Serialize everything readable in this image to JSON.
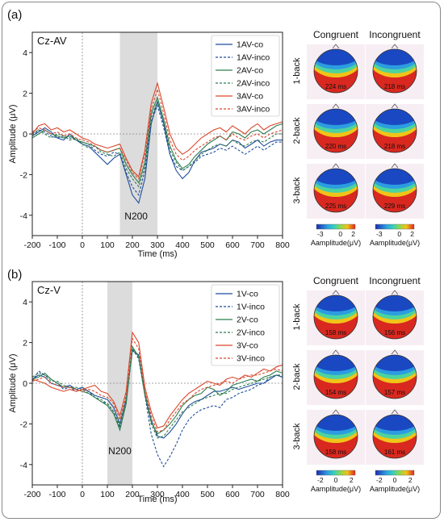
{
  "chart_data": [
    {
      "type": "line",
      "panel_label": "(a)",
      "title": "Cz-AV",
      "xlabel": "Time (ms)",
      "ylabel": "Amplitude (μV)",
      "xlim": [
        -200,
        800
      ],
      "ylim": [
        -5,
        5
      ],
      "xticks": [
        -200,
        -100,
        0,
        100,
        200,
        300,
        400,
        500,
        600,
        700,
        800
      ],
      "yticks": [
        -4,
        -2,
        0,
        2,
        4
      ],
      "shaded_window": [
        150,
        300
      ],
      "annotation": {
        "text": "N200",
        "x": 215,
        "y": -4.0
      },
      "legend_position": "top-right",
      "x": [
        -200,
        -175,
        -150,
        -125,
        -100,
        -75,
        -50,
        -25,
        0,
        25,
        50,
        75,
        100,
        125,
        150,
        175,
        200,
        225,
        250,
        275,
        300,
        325,
        350,
        375,
        400,
        425,
        450,
        475,
        500,
        525,
        550,
        575,
        600,
        625,
        650,
        675,
        700,
        725,
        750,
        775,
        800
      ],
      "series": [
        {
          "name": "1AV-co",
          "color": "#1f4e9a",
          "dash": false,
          "values": [
            -0.1,
            0.1,
            0.3,
            0.1,
            -0.2,
            -0.3,
            0.0,
            -0.3,
            -0.5,
            -0.6,
            -0.9,
            -1.2,
            -1.5,
            -1.2,
            -1.0,
            -2.0,
            -3.0,
            -3.4,
            -2.2,
            0.5,
            1.6,
            0.5,
            -1.0,
            -1.8,
            -2.2,
            -1.9,
            -1.3,
            -0.9,
            -0.8,
            -0.7,
            -0.5,
            -0.6,
            -0.3,
            -0.4,
            -0.7,
            -0.5,
            -0.3,
            -0.6,
            -0.4,
            -0.3,
            -0.3
          ]
        },
        {
          "name": "1AV-inco",
          "color": "#1f4e9a",
          "dash": true,
          "values": [
            0.0,
            0.2,
            0.1,
            -0.1,
            -0.2,
            -0.1,
            -0.2,
            -0.3,
            -0.4,
            -0.5,
            -0.8,
            -1.0,
            -1.1,
            -0.9,
            -1.0,
            -1.9,
            -2.6,
            -3.0,
            -1.8,
            0.6,
            1.4,
            0.3,
            -1.0,
            -1.6,
            -1.8,
            -1.6,
            -1.4,
            -1.1,
            -1.0,
            -0.9,
            -0.7,
            -0.8,
            -0.6,
            -0.8,
            -1.0,
            -0.8,
            -0.6,
            -0.8,
            -0.6,
            -0.4,
            -0.4
          ]
        },
        {
          "name": "2AV-co",
          "color": "#2e7d4f",
          "dash": false,
          "values": [
            -0.2,
            0.0,
            0.2,
            0.0,
            -0.1,
            -0.2,
            -0.1,
            -0.3,
            -0.4,
            -0.5,
            -0.6,
            -0.8,
            -0.9,
            -0.8,
            -0.7,
            -1.5,
            -2.0,
            -2.4,
            -1.4,
            1.0,
            1.8,
            0.7,
            -0.6,
            -1.3,
            -1.7,
            -1.5,
            -1.1,
            -0.8,
            -0.5,
            -0.3,
            -0.1,
            -0.3,
            0.1,
            0.0,
            -0.2,
            0.1,
            0.2,
            0.0,
            0.2,
            0.4,
            0.5
          ]
        },
        {
          "name": "2AV-inco",
          "color": "#2e7d4f",
          "dash": true,
          "values": [
            -0.1,
            0.2,
            0.0,
            -0.2,
            0.0,
            -0.1,
            -0.3,
            -0.2,
            -0.5,
            -0.7,
            -0.6,
            -0.9,
            -1.0,
            -1.1,
            -0.9,
            -1.7,
            -2.2,
            -2.6,
            -1.6,
            0.8,
            1.6,
            0.6,
            -0.8,
            -1.4,
            -1.8,
            -1.6,
            -1.3,
            -1.0,
            -0.8,
            -0.6,
            -0.5,
            -0.6,
            -0.3,
            -0.5,
            -0.6,
            -0.4,
            -0.3,
            -0.4,
            -0.2,
            0.0,
            0.0
          ]
        },
        {
          "name": "3AV-co",
          "color": "#d9472b",
          "dash": false,
          "values": [
            0.0,
            0.4,
            0.5,
            0.2,
            0.3,
            0.1,
            0.2,
            0.0,
            -0.2,
            -0.3,
            -0.5,
            -0.6,
            -0.7,
            -0.6,
            -0.5,
            -1.2,
            -1.8,
            -2.1,
            -0.8,
            1.5,
            2.5,
            1.3,
            0.0,
            -0.7,
            -1.0,
            -0.8,
            -0.5,
            -0.2,
            0.0,
            0.2,
            0.3,
            0.1,
            0.4,
            0.2,
            0.0,
            0.3,
            0.5,
            0.2,
            0.4,
            0.5,
            0.6
          ]
        },
        {
          "name": "3AV-inco",
          "color": "#d9472b",
          "dash": true,
          "values": [
            0.1,
            0.3,
            0.2,
            0.0,
            0.1,
            -0.1,
            0.0,
            -0.2,
            -0.3,
            -0.4,
            -0.6,
            -0.8,
            -0.9,
            -0.8,
            -0.7,
            -1.3,
            -1.9,
            -2.2,
            -1.0,
            1.2,
            2.2,
            1.0,
            -0.3,
            -1.0,
            -1.3,
            -1.1,
            -0.8,
            -0.6,
            -0.4,
            -0.2,
            -0.1,
            -0.3,
            0.0,
            -0.2,
            -0.3,
            -0.1,
            0.0,
            -0.2,
            0.0,
            0.1,
            0.2
          ]
        }
      ],
      "topomaps": {
        "columns": [
          "Congruent",
          "Incongruent"
        ],
        "rows": [
          "1-back",
          "2-back",
          "3-back"
        ],
        "latencies": [
          [
            "224 ms",
            "218 ms"
          ],
          [
            "220 ms",
            "218 ms"
          ],
          [
            "225 ms",
            "229 ms"
          ]
        ],
        "colorbar": {
          "ticks": [
            "-3",
            "0",
            "2"
          ],
          "label": "Aamplitude(μV)"
        }
      }
    },
    {
      "type": "line",
      "panel_label": "(b)",
      "title": "Cz-V",
      "xlabel": "Time (ms)",
      "ylabel": "Amplitude (μV)",
      "xlim": [
        -200,
        800
      ],
      "ylim": [
        -5,
        5
      ],
      "xticks": [
        -200,
        -100,
        0,
        100,
        200,
        300,
        400,
        500,
        600,
        700,
        800
      ],
      "yticks": [
        -4,
        -2,
        0,
        2,
        4
      ],
      "shaded_window": [
        100,
        200
      ],
      "annotation": {
        "text": "N200",
        "x": 150,
        "y": -3.3
      },
      "legend_position": "top-right",
      "x": [
        -200,
        -175,
        -150,
        -125,
        -100,
        -75,
        -50,
        -25,
        0,
        25,
        50,
        75,
        100,
        125,
        150,
        175,
        200,
        225,
        250,
        275,
        300,
        325,
        350,
        375,
        400,
        425,
        450,
        475,
        500,
        525,
        550,
        575,
        600,
        625,
        650,
        675,
        700,
        725,
        750,
        775,
        800
      ],
      "series": [
        {
          "name": "1V-co",
          "color": "#1f4e9a",
          "dash": false,
          "values": [
            0.2,
            0.4,
            0.3,
            0.0,
            -0.1,
            -0.2,
            -0.1,
            -0.3,
            -0.2,
            -0.4,
            -0.6,
            -0.7,
            -0.8,
            -1.2,
            -2.0,
            -0.8,
            1.6,
            1.4,
            -0.5,
            -1.8,
            -2.6,
            -2.7,
            -2.4,
            -2.0,
            -1.5,
            -1.1,
            -0.9,
            -0.8,
            -0.6,
            -0.4,
            -0.4,
            -0.3,
            -0.2,
            -0.3,
            -0.2,
            -0.1,
            0.0,
            0.0,
            0.2,
            0.4,
            0.3
          ]
        },
        {
          "name": "1V-inco",
          "color": "#1f4e9a",
          "dash": true,
          "values": [
            0.1,
            0.6,
            0.4,
            0.2,
            0.0,
            -0.3,
            -0.2,
            -0.4,
            -0.3,
            -0.4,
            -0.7,
            -0.9,
            -1.0,
            -1.4,
            -2.2,
            -1.0,
            1.7,
            1.2,
            -0.6,
            -2.5,
            -3.5,
            -4.1,
            -3.6,
            -3.0,
            -2.3,
            -1.8,
            -1.5,
            -1.3,
            -1.2,
            -1.1,
            -1.2,
            -0.8,
            -0.7,
            -0.5,
            -0.4,
            -0.3,
            -0.1,
            0.0,
            0.3,
            0.4,
            0.3
          ]
        },
        {
          "name": "2V-co",
          "color": "#2e7d4f",
          "dash": false,
          "values": [
            0.2,
            0.3,
            0.5,
            0.2,
            0.0,
            -0.2,
            -0.2,
            -0.3,
            -0.4,
            -0.5,
            -0.7,
            -0.9,
            -1.1,
            -1.5,
            -2.3,
            -1.0,
            1.8,
            1.3,
            -0.6,
            -1.9,
            -2.5,
            -2.3,
            -2.0,
            -1.6,
            -1.1,
            -0.8,
            -0.6,
            -0.5,
            -0.2,
            -0.3,
            -0.6,
            -0.4,
            -0.1,
            0.0,
            0.1,
            0.2,
            0.1,
            0.3,
            0.4,
            0.6,
            0.5
          ]
        },
        {
          "name": "2V-inco",
          "color": "#2e7d4f",
          "dash": true,
          "values": [
            0.3,
            0.5,
            0.4,
            0.1,
            0.1,
            -0.1,
            -0.2,
            -0.2,
            -0.3,
            -0.5,
            -0.7,
            -0.8,
            -1.0,
            -1.4,
            -2.1,
            -0.9,
            1.7,
            1.3,
            -0.5,
            -2.0,
            -2.7,
            -2.6,
            -2.2,
            -1.8,
            -1.4,
            -1.2,
            -1.0,
            -0.8,
            -0.7,
            -0.6,
            -0.5,
            -0.5,
            -0.3,
            -0.2,
            -0.1,
            0.0,
            0.1,
            0.2,
            0.3,
            0.4,
            0.4
          ]
        },
        {
          "name": "3V-co",
          "color": "#d9472b",
          "dash": false,
          "values": [
            0.2,
            0.1,
            0.0,
            -0.2,
            -0.3,
            -0.4,
            -0.3,
            -0.4,
            -0.3,
            -0.2,
            -0.1,
            -0.4,
            -0.5,
            -0.9,
            -1.6,
            -0.4,
            2.5,
            2.0,
            -0.2,
            -1.4,
            -2.2,
            -2.1,
            -1.6,
            -1.2,
            -0.8,
            -0.5,
            -0.3,
            -0.1,
            0.1,
            0.0,
            -0.1,
            0.2,
            0.3,
            0.2,
            0.4,
            0.3,
            0.5,
            0.7,
            0.6,
            0.8,
            0.9
          ]
        },
        {
          "name": "3V-inco",
          "color": "#d9472b",
          "dash": true,
          "values": [
            0.1,
            0.2,
            0.3,
            0.0,
            -0.1,
            -0.2,
            -0.2,
            -0.3,
            -0.4,
            -0.3,
            -0.4,
            -0.6,
            -0.7,
            -1.0,
            -1.8,
            -0.6,
            2.2,
            1.7,
            -0.4,
            -1.6,
            -2.4,
            -2.3,
            -1.8,
            -1.4,
            -1.0,
            -0.8,
            -0.5,
            -0.3,
            -0.2,
            -0.1,
            0.0,
            0.1,
            0.0,
            0.2,
            0.3,
            0.4,
            0.4,
            0.5,
            0.6,
            0.7,
            0.6
          ]
        }
      ],
      "topomaps": {
        "columns": [
          "Congruent",
          "Incongruent"
        ],
        "rows": [
          "1-back",
          "2-back",
          "3-back"
        ],
        "latencies": [
          [
            "158 ms",
            "156 ms"
          ],
          [
            "154 ms",
            "157 ms"
          ],
          [
            "158 ms",
            "161 ms"
          ]
        ],
        "colorbar": {
          "ticks": [
            "-2",
            "0",
            "2"
          ],
          "label": "Aamplitude(μV)"
        }
      }
    }
  ]
}
